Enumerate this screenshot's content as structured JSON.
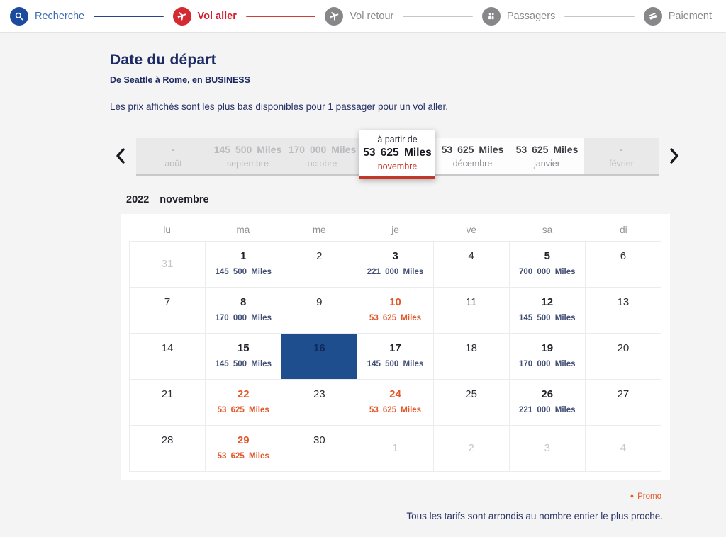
{
  "stepper": {
    "steps": [
      {
        "label": "Recherche",
        "state": "done"
      },
      {
        "label": "Vol aller",
        "state": "active"
      },
      {
        "label": "Vol retour",
        "state": "todo"
      },
      {
        "label": "Passagers",
        "state": "todo"
      },
      {
        "label": "Paiement",
        "state": "todo"
      }
    ]
  },
  "page": {
    "title": "Date du départ",
    "subtitle": "De Seattle à Rome, en BUSINESS",
    "description": "Les prix affichés sont les plus bas disponibles pour 1 passager pour un vol aller."
  },
  "carousel": {
    "months": [
      {
        "name": "août",
        "value": "-",
        "state": "disabled"
      },
      {
        "name": "septembre",
        "value": "145 500 Miles",
        "state": "disabled"
      },
      {
        "name": "octobre",
        "value": "170 000 Miles",
        "state": "disabled"
      },
      {
        "name": "novembre",
        "prefix": "à partir de",
        "value": "53 625 Miles",
        "state": "selected"
      },
      {
        "name": "décembre",
        "value": "53 625 Miles",
        "state": "available"
      },
      {
        "name": "janvier",
        "value": "53 625 Miles",
        "state": "available"
      },
      {
        "name": "février",
        "value": "-",
        "state": "disabled"
      }
    ]
  },
  "calendar": {
    "year": "2022",
    "month": "novembre",
    "weekdays": [
      "lu",
      "ma",
      "me",
      "je",
      "ve",
      "sa",
      "di"
    ],
    "weeks": [
      [
        {
          "day": "31",
          "type": "outside"
        },
        {
          "day": "1",
          "type": "priced",
          "price": "145 500 Miles"
        },
        {
          "day": "2",
          "type": "plain"
        },
        {
          "day": "3",
          "type": "priced",
          "price": "221 000 Miles"
        },
        {
          "day": "4",
          "type": "plain"
        },
        {
          "day": "5",
          "type": "priced",
          "price": "700 000 Miles"
        },
        {
          "day": "6",
          "type": "plain"
        }
      ],
      [
        {
          "day": "7",
          "type": "plain"
        },
        {
          "day": "8",
          "type": "priced",
          "price": "170 000 Miles"
        },
        {
          "day": "9",
          "type": "plain"
        },
        {
          "day": "10",
          "type": "promo",
          "price": "53 625 Miles"
        },
        {
          "day": "11",
          "type": "plain"
        },
        {
          "day": "12",
          "type": "priced",
          "price": "145 500 Miles"
        },
        {
          "day": "13",
          "type": "plain"
        }
      ],
      [
        {
          "day": "14",
          "type": "plain"
        },
        {
          "day": "15",
          "type": "priced",
          "price": "145 500 Miles"
        },
        {
          "day": "16",
          "type": "selected"
        },
        {
          "day": "17",
          "type": "priced",
          "price": "145 500 Miles"
        },
        {
          "day": "18",
          "type": "plain"
        },
        {
          "day": "19",
          "type": "priced",
          "price": "170 000 Miles"
        },
        {
          "day": "20",
          "type": "plain"
        }
      ],
      [
        {
          "day": "21",
          "type": "plain"
        },
        {
          "day": "22",
          "type": "promo",
          "price": "53 625 Miles"
        },
        {
          "day": "23",
          "type": "plain"
        },
        {
          "day": "24",
          "type": "promo",
          "price": "53 625 Miles"
        },
        {
          "day": "25",
          "type": "plain"
        },
        {
          "day": "26",
          "type": "priced",
          "price": "221 000 Miles"
        },
        {
          "day": "27",
          "type": "plain"
        }
      ],
      [
        {
          "day": "28",
          "type": "plain"
        },
        {
          "day": "29",
          "type": "promo",
          "price": "53 625 Miles"
        },
        {
          "day": "30",
          "type": "plain"
        },
        {
          "day": "1",
          "type": "outside"
        },
        {
          "day": "2",
          "type": "outside"
        },
        {
          "day": "3",
          "type": "outside"
        },
        {
          "day": "4",
          "type": "outside"
        }
      ]
    ]
  },
  "footer": {
    "promo_legend": "Promo",
    "note": "Tous les tarifs sont arrondis au nombre entier le plus proche."
  },
  "colors": {
    "selected_day_blue": "#1e4e8e",
    "promo_orange": "#e2582a",
    "active_step_red": "#d42a32",
    "done_step_blue": "#1c4b9e",
    "navy_text": "#1c2b63"
  }
}
